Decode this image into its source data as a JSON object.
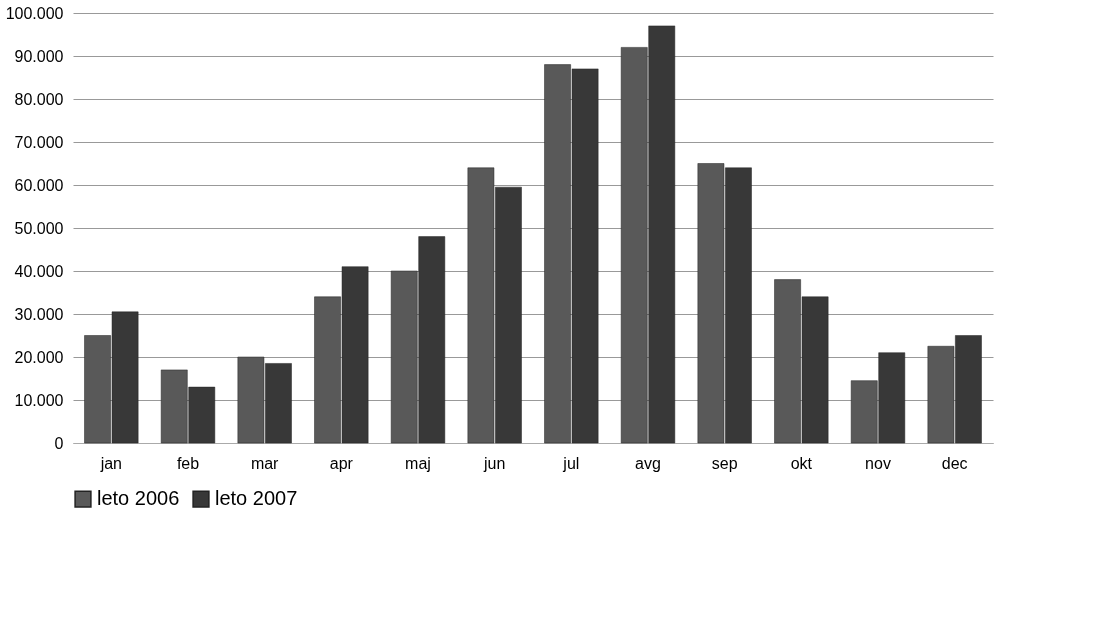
{
  "chart_data": {
    "type": "bar",
    "categories": [
      "jan",
      "feb",
      "mar",
      "apr",
      "maj",
      "jun",
      "jul",
      "avg",
      "sep",
      "okt",
      "nov",
      "dec"
    ],
    "series": [
      {
        "name": "leto 2006",
        "color": "#595959",
        "values": [
          25000,
          17000,
          20000,
          34000,
          40000,
          64000,
          88000,
          92000,
          65000,
          38000,
          14500,
          22500
        ]
      },
      {
        "name": "leto 2007",
        "color": "#383838",
        "values": [
          30500,
          13000,
          18500,
          41000,
          48000,
          59500,
          87000,
          97000,
          64000,
          34000,
          21000,
          25000
        ]
      }
    ],
    "ylim": [
      0,
      100000
    ],
    "yticks": [
      {
        "value": 0,
        "label": "0"
      },
      {
        "value": 10000,
        "label": "10.000"
      },
      {
        "value": 20000,
        "label": "20.000"
      },
      {
        "value": 30000,
        "label": "30.000"
      },
      {
        "value": 40000,
        "label": "40.000"
      },
      {
        "value": 50000,
        "label": "50.000"
      },
      {
        "value": 60000,
        "label": "60.000"
      },
      {
        "value": 70000,
        "label": "70.000"
      },
      {
        "value": 80000,
        "label": "80.000"
      },
      {
        "value": 90000,
        "label": "90.000"
      },
      {
        "value": 100000,
        "label": "100.000"
      }
    ],
    "grid": "y",
    "legend": "bottom"
  }
}
